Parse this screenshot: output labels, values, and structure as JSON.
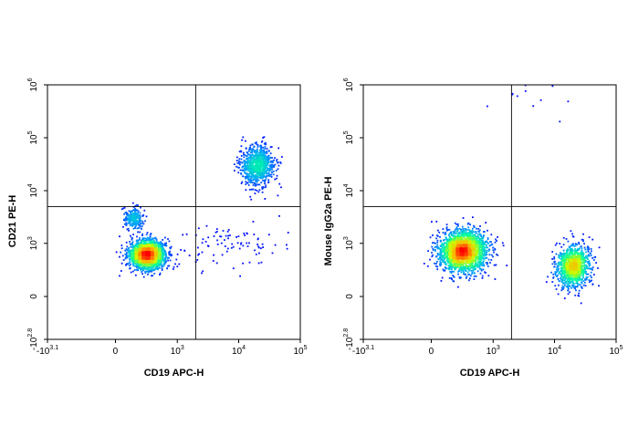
{
  "chart_data": [
    {
      "type": "scatter",
      "subtype": "flow-cytometry-density-dot-plot",
      "xlabel": "CD19 APC-H",
      "ylabel": "CD21 PE-H",
      "x_scale": "biexponential",
      "y_scale": "biexponential",
      "xlim": [
        -1259,
        100000
      ],
      "ylim": [
        -631,
        1000000
      ],
      "x_ticks": [
        {
          "value": -1259,
          "base": "-10",
          "exp": "3.1"
        },
        {
          "value": 0,
          "base": "0",
          "exp": ""
        },
        {
          "value": 1000,
          "base": "10",
          "exp": "3"
        },
        {
          "value": 10000,
          "base": "10",
          "exp": "4"
        },
        {
          "value": 100000,
          "base": "10",
          "exp": "5"
        }
      ],
      "y_ticks": [
        {
          "value": -631,
          "base": "-10",
          "exp": "2.8"
        },
        {
          "value": 0,
          "base": "0",
          "exp": ""
        },
        {
          "value": 1000,
          "base": "10",
          "exp": "3"
        },
        {
          "value": 10000,
          "base": "10",
          "exp": "4"
        },
        {
          "value": 100000,
          "base": "10",
          "exp": "5"
        },
        {
          "value": 1000000,
          "base": "10",
          "exp": "6"
        }
      ],
      "gate": {
        "x": 2000,
        "y": 5000
      },
      "colormap": [
        "#0000ff",
        "#00a0ff",
        "#00ffa0",
        "#c8ff00",
        "#ffb000",
        "#ff0000"
      ],
      "clusters": [
        {
          "center_x": 300,
          "center_y": 600,
          "spread_x": 0.33,
          "spread_y": 0.3,
          "points": 2300,
          "peak": "red"
        },
        {
          "center_x": 20000,
          "center_y": 30000,
          "spread_x": 0.32,
          "spread_y": 0.42,
          "points": 850,
          "peak": "yellow-green"
        },
        {
          "center_x": 150,
          "center_y": 3000,
          "spread_x": 0.2,
          "spread_y": 0.22,
          "points": 230,
          "peak": "blue"
        },
        {
          "center_x": 8000,
          "center_y": 900,
          "spread_x": 0.9,
          "spread_y": 0.5,
          "points": 90,
          "peak": "blue"
        }
      ]
    },
    {
      "type": "scatter",
      "subtype": "flow-cytometry-density-dot-plot",
      "xlabel": "CD19 APC-H",
      "ylabel": "Mouse IgG2a PE-H",
      "x_scale": "biexponential",
      "y_scale": "biexponential",
      "xlim": [
        -1259,
        100000
      ],
      "ylim": [
        -631,
        1000000
      ],
      "x_ticks": [
        {
          "value": -1259,
          "base": "-10",
          "exp": "3.1"
        },
        {
          "value": 0,
          "base": "0",
          "exp": ""
        },
        {
          "value": 1000,
          "base": "10",
          "exp": "3"
        },
        {
          "value": 10000,
          "base": "10",
          "exp": "4"
        },
        {
          "value": 100000,
          "base": "10",
          "exp": "5"
        }
      ],
      "y_ticks": [
        {
          "value": -631,
          "base": "-10",
          "exp": "2.8"
        },
        {
          "value": 0,
          "base": "0",
          "exp": ""
        },
        {
          "value": 1000,
          "base": "10",
          "exp": "3"
        },
        {
          "value": 10000,
          "base": "10",
          "exp": "4"
        },
        {
          "value": 100000,
          "base": "10",
          "exp": "5"
        },
        {
          "value": 1000000,
          "base": "10",
          "exp": "6"
        }
      ],
      "gate": {
        "x": 2000,
        "y": 5000
      },
      "colormap": [
        "#0000ff",
        "#00a0ff",
        "#00ffa0",
        "#c8ff00",
        "#ffb000",
        "#ff0000"
      ],
      "clusters": [
        {
          "center_x": 300,
          "center_y": 700,
          "spread_x": 0.45,
          "spread_y": 0.45,
          "points": 2200,
          "peak": "red"
        },
        {
          "center_x": 20000,
          "center_y": 350,
          "spread_x": 0.3,
          "spread_y": 0.45,
          "points": 1100,
          "peak": "cyan"
        },
        {
          "center_x": 5000,
          "center_y": 1000000,
          "spread_x": 1.2,
          "spread_y": 0.8,
          "points": 25,
          "peak": "blue"
        }
      ]
    }
  ]
}
